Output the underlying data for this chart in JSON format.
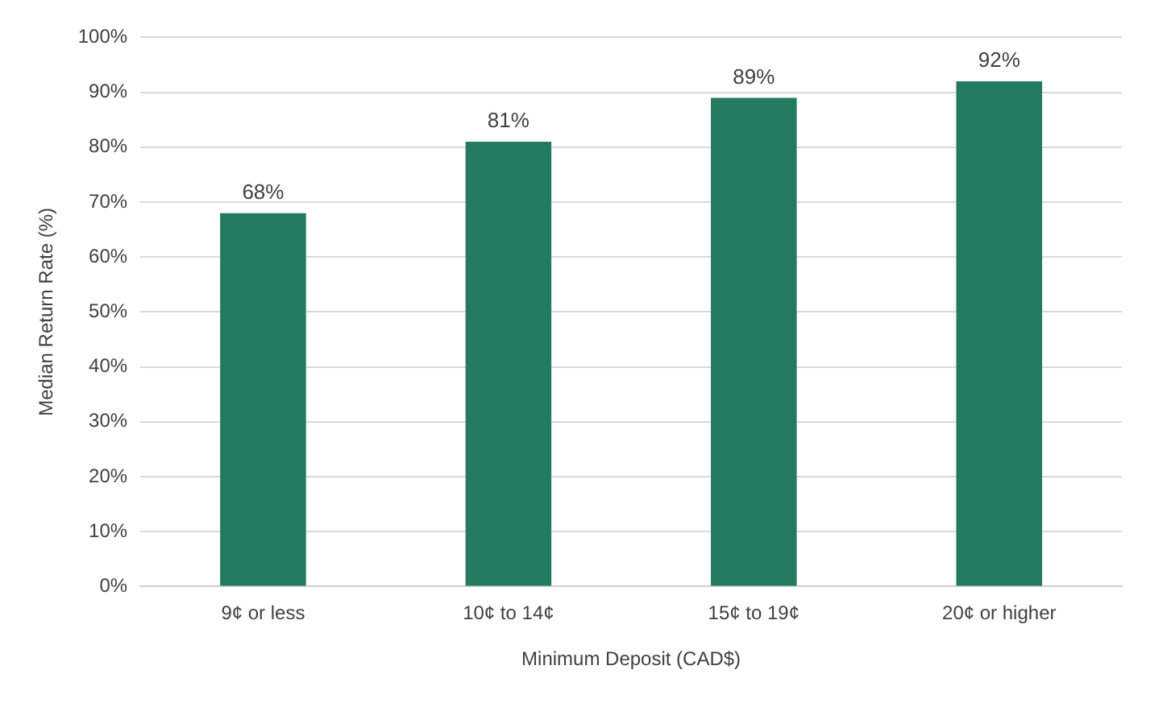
{
  "chart_data": {
    "type": "bar",
    "xlabel": "Minimum Deposit (CAD$)",
    "ylabel": "Median Return Rate (%)",
    "categories": [
      "9¢ or less",
      "10¢ to 14¢",
      "15¢ to 19¢",
      "20¢ or higher"
    ],
    "values": [
      68,
      81,
      89,
      92
    ],
    "value_labels": [
      "68%",
      "81%",
      "89%",
      "92%"
    ],
    "color": "#247a5e",
    "ylim": [
      0,
      100
    ],
    "yticks": [
      {
        "value": 0,
        "label": "0%"
      },
      {
        "value": 10,
        "label": "10%"
      },
      {
        "value": 20,
        "label": "20%"
      },
      {
        "value": 30,
        "label": "30%"
      },
      {
        "value": 40,
        "label": "40%"
      },
      {
        "value": 50,
        "label": "50%"
      },
      {
        "value": 60,
        "label": "60%"
      },
      {
        "value": 70,
        "label": "70%"
      },
      {
        "value": 80,
        "label": "80%"
      },
      {
        "value": 90,
        "label": "90%"
      },
      {
        "value": 100,
        "label": "100%"
      }
    ],
    "grid": "y",
    "legend": false
  }
}
